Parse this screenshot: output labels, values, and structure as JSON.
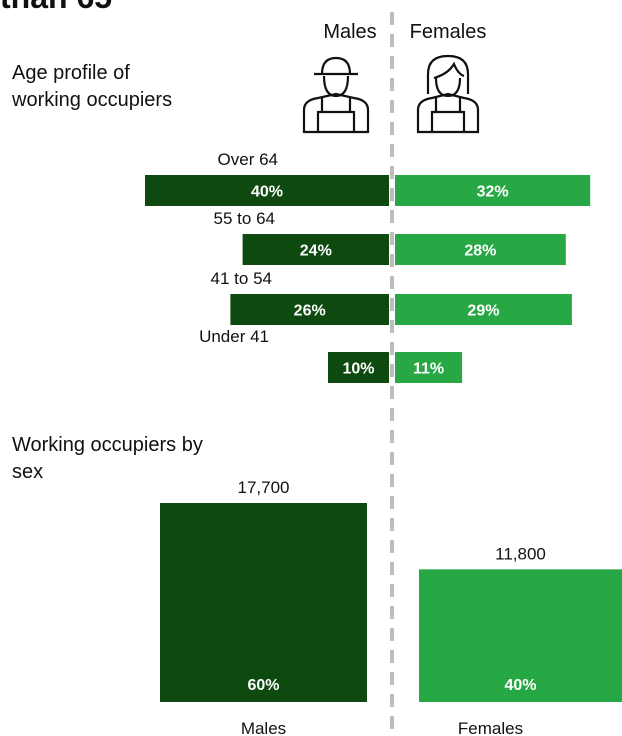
{
  "heading": "than 65",
  "chart_data": [
    {
      "type": "butterfly",
      "title": "Age profile of working occupiers",
      "categories": [
        "Over 64",
        "55 to 64",
        "41 to 54",
        "Under 41"
      ],
      "series": [
        {
          "name": "Males",
          "color": "#0e4a10",
          "values": [
            40,
            24,
            26,
            10
          ],
          "value_labels": [
            "40%",
            "24%",
            "26%",
            "10%"
          ]
        },
        {
          "name": "Females",
          "color": "#27a844",
          "values": [
            32,
            28,
            29,
            11
          ],
          "value_labels": [
            "32%",
            "28%",
            "29%",
            "11%"
          ]
        }
      ]
    },
    {
      "type": "bar",
      "title": "Working occupiers by sex",
      "categories": [
        "Males",
        "Females"
      ],
      "values": [
        17700,
        11800
      ],
      "value_labels": [
        "17,700",
        "11,800"
      ],
      "percentages": [
        60,
        40
      ],
      "percentage_labels": [
        "60%",
        "40%"
      ],
      "colors": [
        "#0e4a10",
        "#27a844"
      ]
    }
  ]
}
